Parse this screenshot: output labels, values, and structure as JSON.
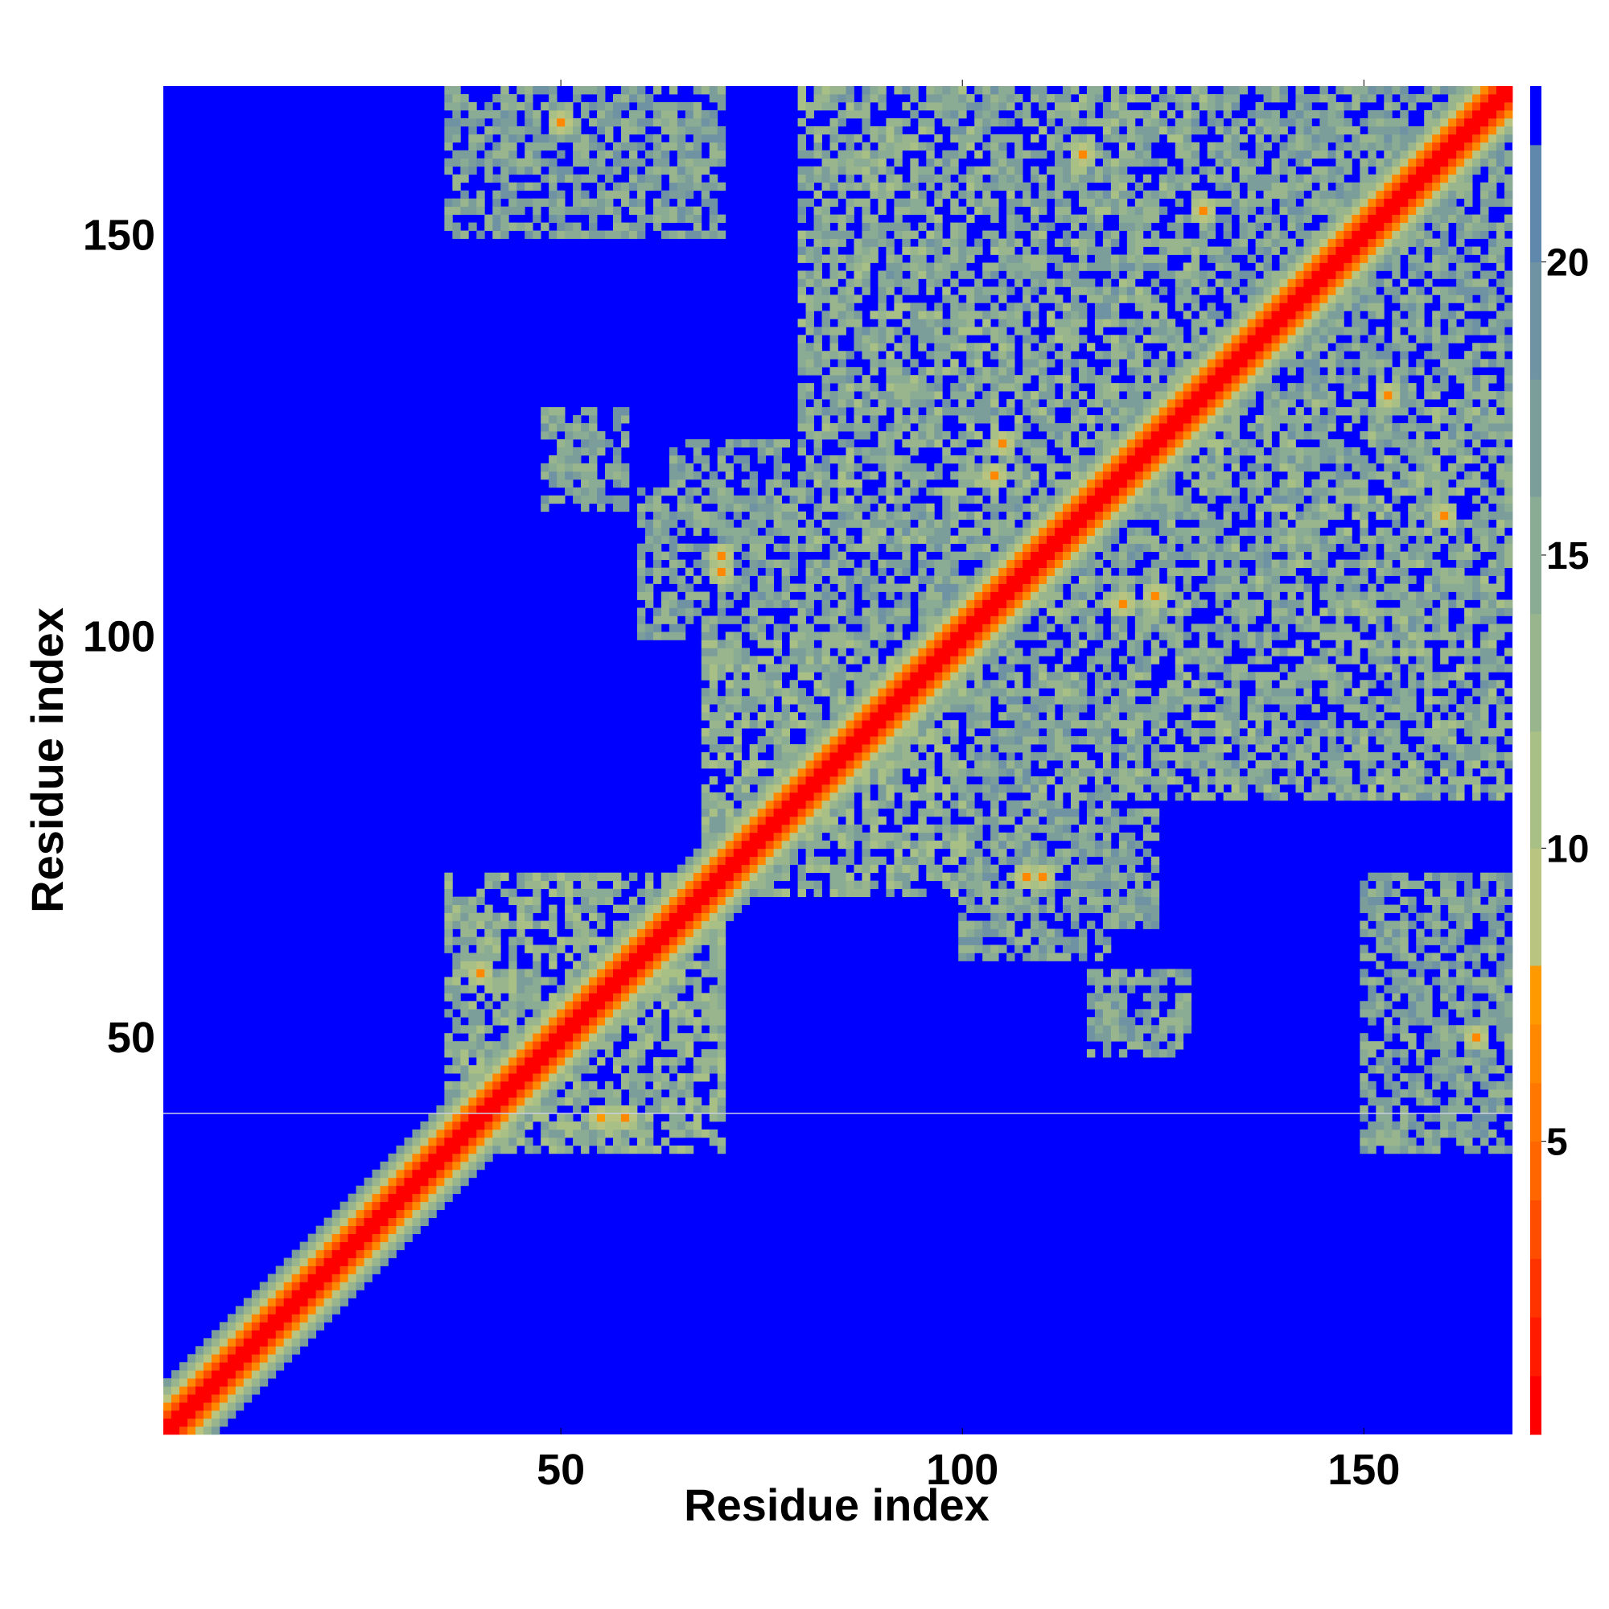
{
  "chart_data": {
    "type": "heatmap",
    "title": "",
    "xlabel": "Residue index",
    "ylabel": "Residue index",
    "xlim": [
      1,
      168
    ],
    "ylim": [
      1,
      168
    ],
    "x_ticks": [
      50,
      100,
      150
    ],
    "y_ticks": [
      50,
      100,
      150
    ],
    "x_tick_labels": [
      "50",
      "100",
      "150"
    ],
    "y_tick_labels": [
      "50",
      "100",
      "150"
    ],
    "colorbar": {
      "range": [
        0,
        23
      ],
      "ticks": [
        5,
        10,
        15,
        20
      ],
      "tick_labels": [
        "5",
        "10",
        "15",
        "20"
      ],
      "levels": [
        {
          "min": 0,
          "max": 1,
          "color": "#ff0000"
        },
        {
          "min": 1,
          "max": 2,
          "color": "#ff1a00"
        },
        {
          "min": 2,
          "max": 3,
          "color": "#ff3300"
        },
        {
          "min": 3,
          "max": 4,
          "color": "#ff4d00"
        },
        {
          "min": 4,
          "max": 5,
          "color": "#ff6600"
        },
        {
          "min": 5,
          "max": 6,
          "color": "#ff7700"
        },
        {
          "min": 6,
          "max": 7,
          "color": "#ff8800"
        },
        {
          "min": 7,
          "max": 8,
          "color": "#ff9900"
        },
        {
          "min": 8,
          "max": 10,
          "color": "#b8c47f"
        },
        {
          "min": 10,
          "max": 12,
          "color": "#a8bf85"
        },
        {
          "min": 12,
          "max": 14,
          "color": "#98b58d"
        },
        {
          "min": 14,
          "max": 16,
          "color": "#8aab94"
        },
        {
          "min": 16,
          "max": 18,
          "color": "#7c9e9b"
        },
        {
          "min": 18,
          "max": 20,
          "color": "#6f93a3"
        },
        {
          "min": 20,
          "max": 22,
          "color": "#6087ac"
        },
        {
          "min": 22,
          "max": 23,
          "color": "#0000ff"
        }
      ]
    },
    "background_value": 23,
    "background_color": "#0000ff",
    "diagonal": {
      "value": 0,
      "width_residues": 1.5
    },
    "contact_regions": [
      {
        "x": [
          36,
          70
        ],
        "y": [
          36,
          70
        ],
        "value": 14
      },
      {
        "x": [
          44,
          70
        ],
        "y": [
          36,
          48
        ],
        "value": 16
      },
      {
        "x": [
          36,
          48
        ],
        "y": [
          44,
          70
        ],
        "value": 16
      },
      {
        "x": [
          68,
          100
        ],
        "y": [
          68,
          100
        ],
        "value": 14
      },
      {
        "x": [
          60,
          100
        ],
        "y": [
          100,
          118
        ],
        "value": 16
      },
      {
        "x": [
          100,
          118
        ],
        "y": [
          60,
          100
        ],
        "value": 16
      },
      {
        "x": [
          80,
          130
        ],
        "y": [
          110,
          168
        ],
        "value": 15
      },
      {
        "x": [
          110,
          168
        ],
        "y": [
          80,
          130
        ],
        "value": 15
      },
      {
        "x": [
          118,
          168
        ],
        "y": [
          118,
          168
        ],
        "value": 16
      },
      {
        "x": [
          36,
          70
        ],
        "y": [
          150,
          168
        ],
        "value": 16
      },
      {
        "x": [
          150,
          168
        ],
        "y": [
          36,
          70
        ],
        "value": 16
      },
      {
        "x": [
          100,
          124
        ],
        "y": [
          64,
          78
        ],
        "value": 16
      },
      {
        "x": [
          64,
          78
        ],
        "y": [
          100,
          124
        ],
        "value": 16
      },
      {
        "x": [
          116,
          128
        ],
        "y": [
          48,
          58
        ],
        "value": 16
      },
      {
        "x": [
          48,
          58
        ],
        "y": [
          116,
          128
        ],
        "value": 16
      }
    ],
    "close_contacts": [
      {
        "x": 40,
        "y": 58,
        "value": 6
      },
      {
        "x": 58,
        "y": 40,
        "value": 6
      },
      {
        "x": 55,
        "y": 40,
        "value": 7
      },
      {
        "x": 70,
        "y": 108,
        "value": 6
      },
      {
        "x": 108,
        "y": 70,
        "value": 6
      },
      {
        "x": 104,
        "y": 120,
        "value": 6
      },
      {
        "x": 120,
        "y": 104,
        "value": 6
      },
      {
        "x": 124,
        "y": 105,
        "value": 6
      },
      {
        "x": 105,
        "y": 124,
        "value": 6
      },
      {
        "x": 130,
        "y": 153,
        "value": 6
      },
      {
        "x": 153,
        "y": 130,
        "value": 6
      },
      {
        "x": 160,
        "y": 115,
        "value": 6
      },
      {
        "x": 115,
        "y": 160,
        "value": 6
      },
      {
        "x": 164,
        "y": 50,
        "value": 6
      },
      {
        "x": 50,
        "y": 164,
        "value": 6
      },
      {
        "x": 110,
        "y": 70,
        "value": 6
      },
      {
        "x": 70,
        "y": 110,
        "value": 6
      }
    ],
    "horizontal_line_y": 41
  }
}
